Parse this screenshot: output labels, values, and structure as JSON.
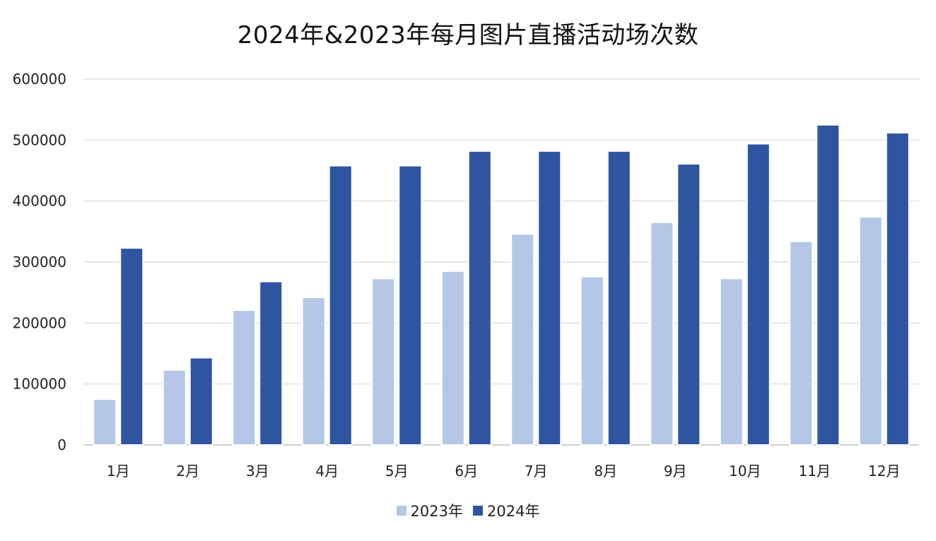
{
  "chart_data": {
    "type": "bar",
    "title": "2024年&2023年每月图片直播活动场次数",
    "xlabel": "",
    "ylabel": "",
    "categories": [
      "1月",
      "2月",
      "3月",
      "4月",
      "5月",
      "6月",
      "7月",
      "8月",
      "9月",
      "10月",
      "11月",
      "12月"
    ],
    "series": [
      {
        "name": "2023年",
        "color": "#b4c7e7",
        "values": [
          75000,
          123000,
          221000,
          242000,
          273000,
          285000,
          346000,
          276000,
          365000,
          273000,
          334000,
          374000
        ]
      },
      {
        "name": "2024年",
        "color": "#2f55a1",
        "values": [
          323000,
          143000,
          268000,
          458000,
          458000,
          482000,
          482000,
          482000,
          461000,
          494000,
          525000,
          512000
        ]
      }
    ],
    "ylim": [
      0,
      600000
    ],
    "yticks": [
      "0",
      "100000",
      "200000",
      "300000",
      "400000",
      "500000",
      "600000"
    ],
    "grid": true,
    "legend_position": "bottom"
  }
}
